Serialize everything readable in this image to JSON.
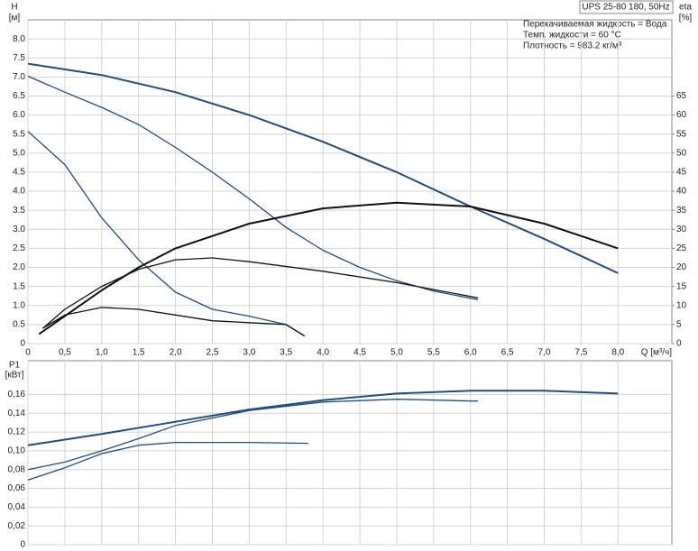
{
  "chart_data": [
    {
      "type": "line",
      "title": "UPS 25-80 180, 50Hz",
      "annotations": [
        "Перекачиваемая жидкость = Вода",
        "Темп. жидкости = 60 °C",
        "Плотность = 983.2 кг/м³"
      ],
      "xlabel": "Q [м³/ч]",
      "ylabel": "H",
      "yunit": "[м]",
      "y2label": "eta",
      "y2unit": "[%]",
      "xlim": [
        0,
        8.73
      ],
      "ylim": [
        0,
        8.5
      ],
      "y2lim": [
        0,
        85
      ],
      "xticks": [
        0,
        {
          "value": 0.5,
          "label": "0,5"
        },
        {
          "value": 1,
          "label": "1,0"
        },
        {
          "value": 1.5,
          "label": "1,5"
        },
        {
          "value": 2,
          "label": "2,0"
        },
        {
          "value": 2.5,
          "label": "2,5"
        },
        {
          "value": 3,
          "label": "3,0"
        },
        {
          "value": 3.5,
          "label": "3,5"
        },
        {
          "value": 4,
          "label": "4,0"
        },
        {
          "value": 4.5,
          "label": "4,5"
        },
        {
          "value": 5,
          "label": "5,0"
        },
        {
          "value": 5.5,
          "label": "5,5"
        },
        {
          "value": 6,
          "label": "6,0"
        },
        {
          "value": 6.5,
          "label": "6,5"
        },
        {
          "value": 7,
          "label": "7,0"
        },
        {
          "value": 7.5,
          "label": "7,5"
        },
        {
          "value": 8,
          "label": "8,0"
        }
      ],
      "yticks": [
        0,
        0.5,
        {
          "value": 1,
          "label": "1.0"
        },
        1.5,
        {
          "value": 2,
          "label": "2.0"
        },
        2.5,
        {
          "value": 3,
          "label": "3.0"
        },
        3.5,
        {
          "value": 4,
          "label": "4.0"
        },
        4.5,
        {
          "value": 5,
          "label": "5.0"
        },
        5.5,
        {
          "value": 6,
          "label": "6.0"
        },
        6.5,
        {
          "value": 7,
          "label": "7.0"
        },
        7.5,
        {
          "value": 8,
          "label": "8.0"
        }
      ],
      "y2ticks": [
        0,
        5,
        10,
        15,
        20,
        25,
        30,
        35,
        40,
        45,
        50,
        55,
        60,
        65
      ],
      "grid": true,
      "series": [
        {
          "color": "#1d4e89",
          "x": [
            0,
            1,
            2,
            3,
            4,
            5,
            6,
            7,
            8
          ],
          "values": [
            7.35,
            7.05,
            6.6,
            6.0,
            5.3,
            4.5,
            3.6,
            2.75,
            1.85
          ]
        },
        {
          "color": "#1d4e89",
          "x": [
            0,
            0.5,
            1,
            1.5,
            2,
            2.5,
            3,
            3.5,
            4,
            4.5,
            5,
            5.5,
            6.1
          ],
          "values": [
            7.02,
            6.6,
            6.2,
            5.75,
            5.15,
            4.5,
            3.8,
            3.05,
            2.45,
            2.0,
            1.65,
            1.38,
            1.15
          ]
        },
        {
          "color": "#1d4e89",
          "x": [
            0,
            0.5,
            1,
            1.5,
            2,
            2.5,
            3,
            3.5,
            3.75
          ],
          "values": [
            5.57,
            4.7,
            3.3,
            2.2,
            1.35,
            0.9,
            0.72,
            0.5,
            0.2
          ]
        },
        {
          "color": "#111111",
          "axis": "y2",
          "x": [
            0.15,
            1,
            1.5,
            2,
            3,
            4,
            5,
            6,
            7,
            8
          ],
          "values": [
            2.5,
            14,
            20,
            25,
            31.5,
            35.5,
            37,
            36,
            31.5,
            25
          ]
        },
        {
          "color": "#111111",
          "axis": "y2",
          "x": [
            0.2,
            0.5,
            1,
            1.5,
            2,
            2.5,
            3,
            4,
            5,
            6.1
          ],
          "values": [
            4,
            9,
            15,
            19.5,
            22,
            22.5,
            21.5,
            19,
            16,
            12
          ]
        },
        {
          "color": "#111111",
          "axis": "y2",
          "x": [
            0.2,
            0.5,
            1,
            1.5,
            2,
            2.5,
            3,
            3.5,
            3.75
          ],
          "values": [
            4,
            7.5,
            9.5,
            9,
            7.5,
            6,
            5.5,
            5,
            2
          ]
        }
      ]
    },
    {
      "type": "line",
      "ylabel": "P1",
      "yunit": "[кВт]",
      "xlim": [
        0,
        8.73
      ],
      "ylim": [
        0,
        0.196
      ],
      "yticks": [
        0,
        {
          "value": 0.02,
          "label": "0,02"
        },
        {
          "value": 0.04,
          "label": "0,04"
        },
        {
          "value": 0.06,
          "label": "0,06"
        },
        {
          "value": 0.08,
          "label": "0,08"
        },
        {
          "value": 0.1,
          "label": "0,10"
        },
        {
          "value": 0.12,
          "label": "0,12"
        },
        {
          "value": 0.14,
          "label": "0,14"
        },
        {
          "value": 0.16,
          "label": "0,16"
        }
      ],
      "grid": true,
      "series": [
        {
          "color": "#1d4e89",
          "x": [
            0,
            1,
            2,
            3,
            4,
            5,
            6,
            7,
            8
          ],
          "values": [
            0.106,
            0.118,
            0.131,
            0.144,
            0.154,
            0.161,
            0.164,
            0.164,
            0.161
          ]
        },
        {
          "color": "#1d4e89",
          "x": [
            0,
            0.5,
            1,
            1.5,
            2,
            3,
            4,
            5,
            6.1
          ],
          "values": [
            0.08,
            0.088,
            0.1,
            0.113,
            0.127,
            0.143,
            0.152,
            0.155,
            0.153
          ]
        },
        {
          "color": "#1d4e89",
          "x": [
            0,
            0.5,
            1,
            1.5,
            2,
            3,
            3.8
          ],
          "values": [
            0.069,
            0.082,
            0.097,
            0.106,
            0.109,
            0.109,
            0.108
          ]
        }
      ]
    }
  ]
}
